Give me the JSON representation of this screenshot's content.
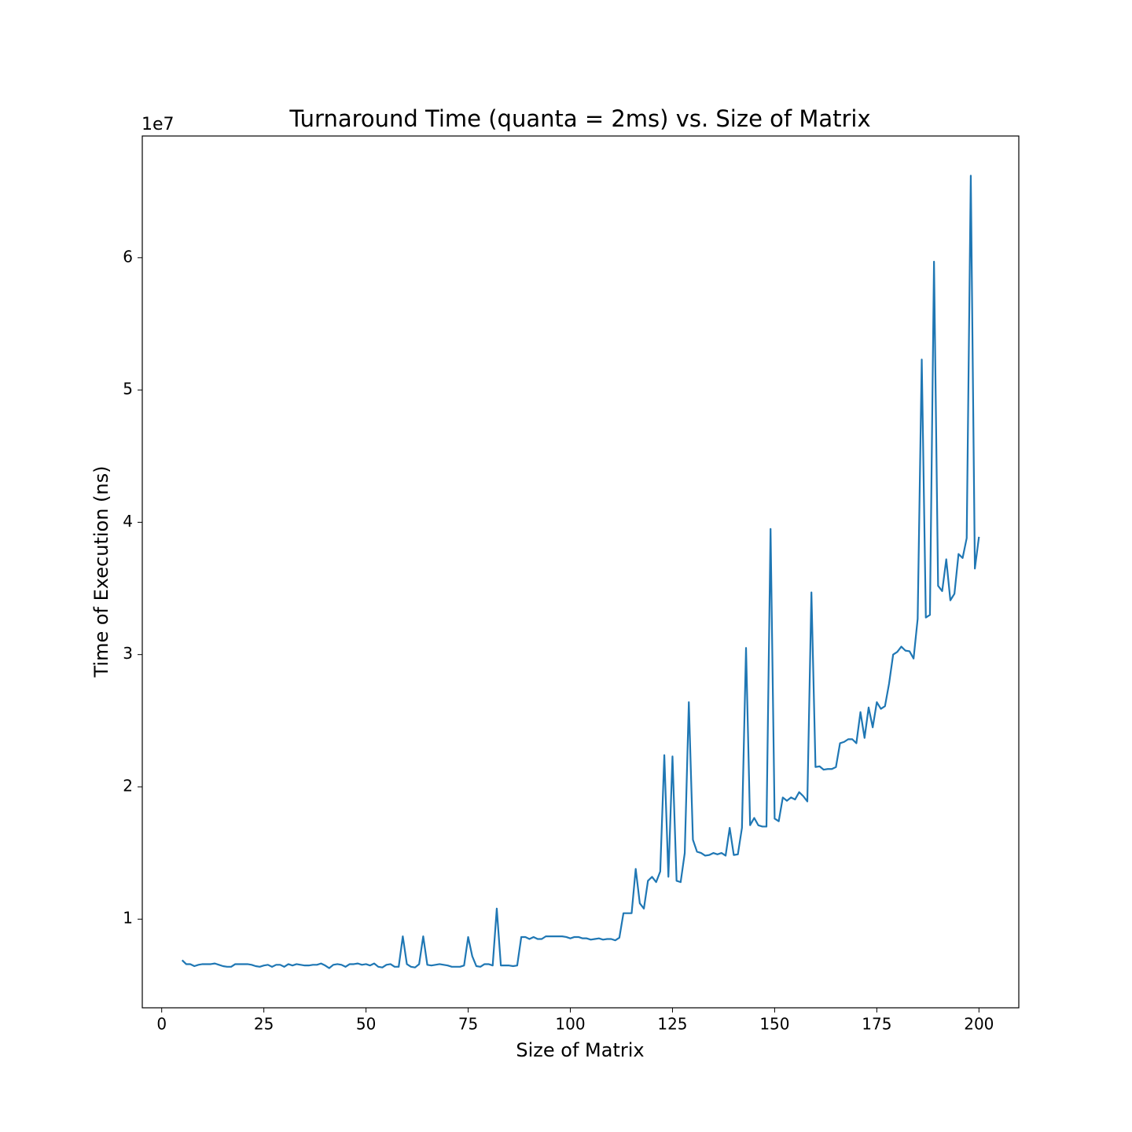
{
  "chart_data": {
    "type": "line",
    "title": "Turnaround Time (quanta = 2ms) vs. Size of Matrix",
    "x_label": "Size of Matrix",
    "y_label": "Time of Execution (ns)",
    "y_scale_label": "1e7",
    "x": [
      5,
      6,
      7,
      8,
      9,
      10,
      11,
      12,
      13,
      14,
      15,
      16,
      17,
      18,
      19,
      20,
      21,
      22,
      23,
      24,
      25,
      26,
      27,
      28,
      29,
      30,
      31,
      32,
      33,
      34,
      35,
      36,
      37,
      38,
      39,
      40,
      41,
      42,
      43,
      44,
      45,
      46,
      47,
      48,
      49,
      50,
      51,
      52,
      53,
      54,
      55,
      56,
      57,
      58,
      59,
      60,
      61,
      62,
      63,
      64,
      65,
      66,
      67,
      68,
      69,
      70,
      71,
      72,
      73,
      74,
      75,
      76,
      77,
      78,
      79,
      80,
      81,
      82,
      83,
      84,
      85,
      86,
      87,
      88,
      89,
      90,
      91,
      92,
      93,
      94,
      95,
      96,
      97,
      98,
      99,
      100,
      101,
      102,
      103,
      104,
      105,
      106,
      107,
      108,
      109,
      110,
      111,
      112,
      113,
      114,
      115,
      116,
      117,
      118,
      119,
      120,
      121,
      122,
      123,
      124,
      125,
      126,
      127,
      128,
      129,
      130,
      131,
      132,
      133,
      134,
      135,
      136,
      137,
      138,
      139,
      140,
      141,
      142,
      143,
      144,
      145,
      146,
      147,
      148,
      149,
      150,
      151,
      152,
      153,
      154,
      155,
      156,
      157,
      158,
      159,
      160,
      161,
      162,
      163,
      164,
      165,
      166,
      167,
      168,
      169,
      170,
      171,
      172,
      173,
      174,
      175,
      176,
      177,
      178,
      179,
      180,
      181,
      182,
      183,
      184,
      185,
      186,
      187,
      188,
      189,
      190,
      191,
      192,
      193,
      194,
      195,
      196,
      197,
      198,
      199,
      200
    ],
    "series": [
      {
        "color": "#1f77b4",
        "values": [
          0.69,
          0.66,
          0.66,
          0.645,
          0.655,
          0.66,
          0.66,
          0.66,
          0.665,
          0.655,
          0.645,
          0.64,
          0.64,
          0.66,
          0.66,
          0.66,
          0.66,
          0.655,
          0.645,
          0.64,
          0.65,
          0.655,
          0.64,
          0.655,
          0.655,
          0.64,
          0.66,
          0.65,
          0.66,
          0.655,
          0.65,
          0.65,
          0.655,
          0.655,
          0.665,
          0.65,
          0.63,
          0.655,
          0.66,
          0.655,
          0.64,
          0.66,
          0.66,
          0.665,
          0.655,
          0.66,
          0.65,
          0.665,
          0.64,
          0.635,
          0.655,
          0.66,
          0.64,
          0.64,
          0.87,
          0.66,
          0.64,
          0.635,
          0.66,
          0.87,
          0.655,
          0.65,
          0.655,
          0.66,
          0.655,
          0.65,
          0.64,
          0.64,
          0.64,
          0.65,
          0.865,
          0.72,
          0.645,
          0.64,
          0.66,
          0.66,
          0.65,
          1.08,
          0.65,
          0.65,
          0.65,
          0.645,
          0.65,
          0.865,
          0.865,
          0.85,
          0.865,
          0.85,
          0.85,
          0.87,
          0.87,
          0.87,
          0.87,
          0.87,
          0.865,
          0.855,
          0.865,
          0.865,
          0.855,
          0.855,
          0.845,
          0.85,
          0.855,
          0.845,
          0.85,
          0.85,
          0.84,
          0.86,
          1.045,
          1.045,
          1.045,
          1.38,
          1.12,
          1.08,
          1.29,
          1.32,
          1.28,
          1.36,
          2.24,
          1.32,
          2.23,
          1.29,
          1.28,
          1.5,
          2.64,
          1.6,
          1.51,
          1.5,
          1.48,
          1.485,
          1.5,
          1.49,
          1.5,
          1.48,
          1.69,
          1.485,
          1.49,
          1.69,
          3.05,
          1.71,
          1.765,
          1.71,
          1.7,
          1.7,
          3.95,
          1.76,
          1.74,
          1.92,
          1.895,
          1.92,
          1.905,
          1.96,
          1.93,
          1.89,
          3.47,
          2.15,
          2.155,
          2.13,
          2.135,
          2.135,
          2.15,
          2.33,
          2.34,
          2.36,
          2.36,
          2.33,
          2.565,
          2.37,
          2.6,
          2.45,
          2.64,
          2.59,
          2.61,
          2.78,
          3.0,
          3.02,
          3.06,
          3.03,
          3.025,
          2.97,
          3.27,
          5.23,
          3.28,
          3.3,
          5.97,
          3.52,
          3.48,
          3.72,
          3.41,
          3.46,
          3.76,
          3.73,
          3.88,
          6.62,
          3.65,
          3.89
        ]
      }
    ],
    "xlim": [
      -4.75,
      209.75
    ],
    "ylim": [
      0.33,
      6.92
    ],
    "xticks": [
      0,
      25,
      50,
      75,
      100,
      125,
      150,
      175,
      200
    ],
    "yticks": [
      1,
      2,
      3,
      4,
      5,
      6
    ]
  }
}
